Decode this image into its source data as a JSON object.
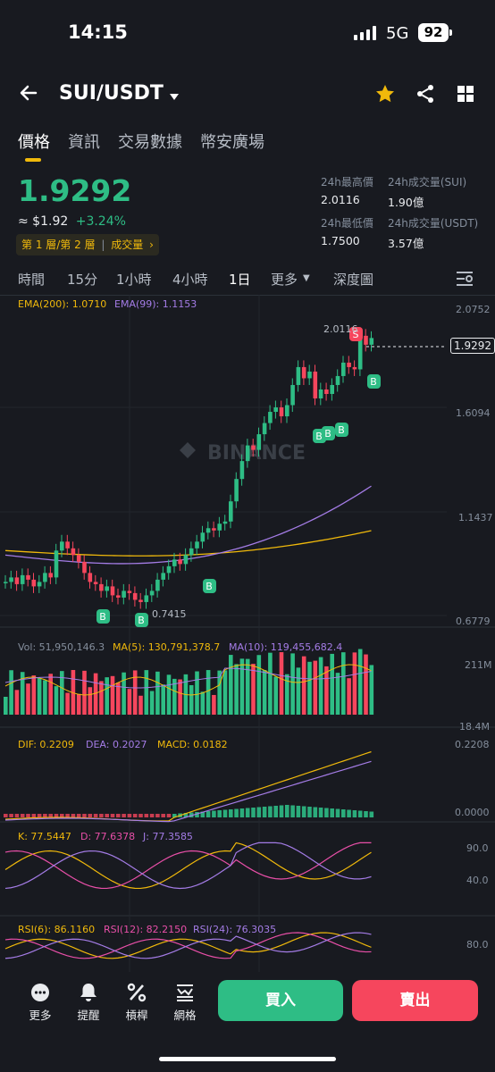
{
  "status": {
    "time": "14:15",
    "network": "5G",
    "battery": "92"
  },
  "header": {
    "pair": "SUI/USDT"
  },
  "tabs": [
    "價格",
    "資訊",
    "交易數據",
    "幣安廣場"
  ],
  "ticker": {
    "last": "1.9292",
    "usd": "≈ $1.92",
    "change": "+3.24%",
    "layer": "第 1 層/第 2 層",
    "layer_tag": "成交量",
    "high_label": "24h最高價",
    "high": "2.0116",
    "low_label": "24h最低價",
    "low": "1.7500",
    "vol_base_label": "24h成交量(SUI)",
    "vol_base": "1.90億",
    "vol_quote_label": "24h成交量(USDT)",
    "vol_quote": "3.57億"
  },
  "intervals": [
    "時間",
    "15分",
    "1小時",
    "4小時",
    "1日",
    "更多",
    "深度圖"
  ],
  "active_interval": "1日",
  "main_chart": {
    "ema200": "EMA(200): 1.0710",
    "ema99": "EMA(99): 1.1153",
    "axis": [
      "2.0752",
      "1.6094",
      "1.1437",
      "0.6779"
    ],
    "current": "1.9292",
    "high_mark": "2.0116",
    "low_mark": "0.7415",
    "watermark": "BINANCE",
    "colors": {
      "up": "#2EBD85",
      "down": "#F6465D",
      "ema200": "#F0B90B",
      "ema99": "#A47CE6"
    }
  },
  "volume": {
    "vol": "Vol: 51,950,146.3",
    "ma5": "MA(5): 130,791,378.7",
    "ma10": "MA(10): 119,455,682.4",
    "axis": [
      "211M",
      "18.4M"
    ]
  },
  "macd": {
    "dif": "DIF: 0.2209",
    "dea": "DEA: 0.2027",
    "macd": "MACD: 0.0182",
    "axis": [
      "0.2208",
      "0.0000"
    ]
  },
  "kdj": {
    "k": "K: 77.5447",
    "d": "D: 77.6378",
    "j": "J: 77.3585",
    "axis": [
      "90.0",
      "40.0"
    ]
  },
  "rsi": {
    "r6": "RSI(6): 86.1160",
    "r12": "RSI(12): 82.2150",
    "r24": "RSI(24): 76.3035",
    "axis": [
      "80.0"
    ]
  },
  "bottom": {
    "more": "更多",
    "alert": "提醒",
    "leverage": "槓桿",
    "grid": "網格",
    "buy": "買入",
    "sell": "賣出"
  }
}
